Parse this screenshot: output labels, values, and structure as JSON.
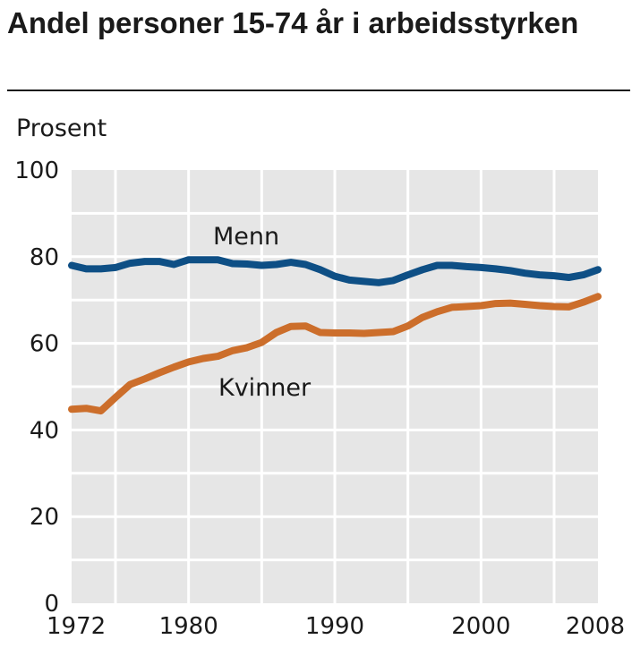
{
  "chart_data": {
    "type": "line",
    "title": "Andel personer 15-74 år i arbeidsstyrken",
    "ylabel": "Prosent",
    "xlabel": "",
    "ylim": [
      0,
      100
    ],
    "xlim": [
      1972,
      2008
    ],
    "yticks": [
      "0",
      "20",
      "40",
      "60",
      "80",
      "100"
    ],
    "xticks": [
      "1972",
      "1980",
      "1990",
      "2000",
      "2008"
    ],
    "grid": true,
    "series": [
      {
        "name": "Menn",
        "color": "#0e4f85",
        "x": [
          1972,
          1973,
          1974,
          1975,
          1976,
          1977,
          1978,
          1979,
          1980,
          1981,
          1982,
          1983,
          1984,
          1985,
          1986,
          1987,
          1988,
          1989,
          1990,
          1991,
          1992,
          1993,
          1994,
          1995,
          1996,
          1997,
          1998,
          1999,
          2000,
          2001,
          2002,
          2003,
          2004,
          2005,
          2006,
          2007,
          2008
        ],
        "values": [
          78,
          77.2,
          77.2,
          77.5,
          78.5,
          78.9,
          78.9,
          78.2,
          79.3,
          79.3,
          79.3,
          78.4,
          78.3,
          78,
          78.2,
          78.7,
          78.2,
          77,
          75.5,
          74.6,
          74.3,
          74,
          74.5,
          75.8,
          77,
          78,
          78,
          77.7,
          77.5,
          77.2,
          76.8,
          76.2,
          75.8,
          75.6,
          75.2,
          75.8,
          77
        ]
      },
      {
        "name": "Kvinner",
        "color": "#cc6e2b",
        "x": [
          1972,
          1973,
          1974,
          1975,
          1976,
          1977,
          1978,
          1979,
          1980,
          1981,
          1982,
          1983,
          1984,
          1985,
          1986,
          1987,
          1988,
          1989,
          1990,
          1991,
          1992,
          1993,
          1994,
          1995,
          1996,
          1997,
          1998,
          1999,
          2000,
          2001,
          2002,
          2003,
          2004,
          2005,
          2006,
          2007,
          2008
        ],
        "values": [
          44.8,
          45,
          44.4,
          47.5,
          50.5,
          51.8,
          53.2,
          54.5,
          55.7,
          56.5,
          57,
          58.3,
          59,
          60.2,
          62.5,
          63.9,
          64,
          62.5,
          62.4,
          62.4,
          62.3,
          62.5,
          62.7,
          64,
          66,
          67.3,
          68.3,
          68.5,
          68.7,
          69.2,
          69.3,
          69,
          68.7,
          68.5,
          68.4,
          69.5,
          70.8
        ]
      }
    ]
  }
}
